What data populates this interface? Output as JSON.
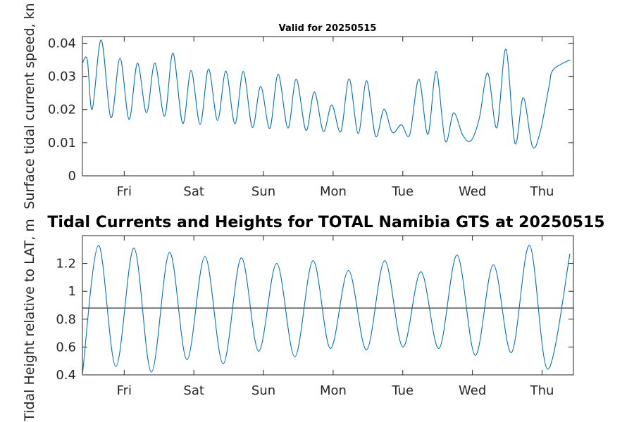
{
  "chart_data": [
    {
      "type": "line",
      "title": "Valid for 20250515",
      "ylabel": "Surface tidal current speed, kn",
      "ylim": [
        0,
        0.042
      ],
      "yticks": [
        "0",
        "0.01",
        "0.02",
        "0.03",
        "0.04"
      ],
      "yticks_values": [
        0,
        0.01,
        0.02,
        0.03,
        0.04
      ],
      "xlim_days": [
        0,
        7.05
      ],
      "xticks": [
        "Fri",
        "Sat",
        "Sun",
        "Mon",
        "Tue",
        "Wed",
        "Thu"
      ],
      "xticks_days": [
        0.6,
        1.6,
        2.6,
        3.6,
        4.6,
        5.6,
        6.6
      ],
      "series": [
        {
          "color": "#0072BD",
          "points": [
            [
              0.0,
              0.034
            ],
            [
              0.07,
              0.035
            ],
            [
              0.14,
              0.02
            ],
            [
              0.27,
              0.041
            ],
            [
              0.41,
              0.0175
            ],
            [
              0.54,
              0.0355
            ],
            [
              0.67,
              0.017
            ],
            [
              0.79,
              0.034
            ],
            [
              0.92,
              0.019
            ],
            [
              1.04,
              0.034
            ],
            [
              1.18,
              0.018
            ],
            [
              1.3,
              0.037
            ],
            [
              1.44,
              0.0158
            ],
            [
              1.56,
              0.0318
            ],
            [
              1.69,
              0.0155
            ],
            [
              1.81,
              0.0322
            ],
            [
              1.94,
              0.0167
            ],
            [
              2.06,
              0.0316
            ],
            [
              2.19,
              0.0157
            ],
            [
              2.31,
              0.0315
            ],
            [
              2.44,
              0.0146
            ],
            [
              2.56,
              0.027
            ],
            [
              2.69,
              0.0143
            ],
            [
              2.81,
              0.0307
            ],
            [
              2.95,
              0.0144
            ],
            [
              3.07,
              0.0292
            ],
            [
              3.21,
              0.0137
            ],
            [
              3.33,
              0.0253
            ],
            [
              3.46,
              0.0134
            ],
            [
              3.58,
              0.0214
            ],
            [
              3.71,
              0.0133
            ],
            [
              3.83,
              0.0293
            ],
            [
              3.96,
              0.0127
            ],
            [
              4.08,
              0.0287
            ],
            [
              4.21,
              0.0119
            ],
            [
              4.33,
              0.0201
            ],
            [
              4.45,
              0.0131
            ],
            [
              4.58,
              0.0154
            ],
            [
              4.7,
              0.0124
            ],
            [
              4.83,
              0.0292
            ],
            [
              4.96,
              0.0125
            ],
            [
              5.08,
              0.0315
            ],
            [
              5.21,
              0.0105
            ],
            [
              5.33,
              0.019
            ],
            [
              5.46,
              0.0123
            ],
            [
              5.58,
              0.0106
            ],
            [
              5.7,
              0.0175
            ],
            [
              5.82,
              0.031
            ],
            [
              5.95,
              0.0145
            ],
            [
              6.08,
              0.0382
            ],
            [
              6.21,
              0.0098
            ],
            [
              6.33,
              0.0236
            ],
            [
              6.46,
              0.0089
            ],
            [
              6.57,
              0.013
            ],
            [
              6.7,
              0.027
            ],
            [
              6.76,
              0.032
            ],
            [
              7.0,
              0.035
            ]
          ]
        }
      ]
    },
    {
      "type": "line",
      "title": "Tidal Currents and Heights for TOTAL Namibia GTS at 20250515",
      "ylabel": "Tidal Height relative to LAT, m",
      "ylim": [
        0.4,
        1.4
      ],
      "yticks": [
        "0.4",
        "0.6",
        "0.8",
        "1",
        "1.2"
      ],
      "yticks_values": [
        0.4,
        0.6,
        0.8,
        1.0,
        1.2
      ],
      "xlim_days": [
        0,
        7.05
      ],
      "xticks": [
        "Fri",
        "Sat",
        "Sun",
        "Mon",
        "Tue",
        "Wed",
        "Thu"
      ],
      "xticks_days": [
        0.6,
        1.6,
        2.6,
        3.6,
        4.6,
        5.6,
        6.6
      ],
      "reference_line": 0.88,
      "series": [
        {
          "color": "#0072BD",
          "points": [
            [
              0.0,
              0.4
            ],
            [
              0.23,
              1.33
            ],
            [
              0.48,
              0.46
            ],
            [
              0.74,
              1.31
            ],
            [
              0.99,
              0.42
            ],
            [
              1.25,
              1.28
            ],
            [
              1.5,
              0.51
            ],
            [
              1.76,
              1.25
            ],
            [
              2.02,
              0.48
            ],
            [
              2.28,
              1.24
            ],
            [
              2.53,
              0.57
            ],
            [
              2.79,
              1.2
            ],
            [
              3.05,
              0.53
            ],
            [
              3.31,
              1.22
            ],
            [
              3.56,
              0.59
            ],
            [
              3.82,
              1.15
            ],
            [
              4.08,
              0.58
            ],
            [
              4.34,
              1.22
            ],
            [
              4.6,
              0.6
            ],
            [
              4.86,
              1.14
            ],
            [
              5.12,
              0.59
            ],
            [
              5.38,
              1.26
            ],
            [
              5.64,
              0.54
            ],
            [
              5.9,
              1.19
            ],
            [
              6.16,
              0.56
            ],
            [
              6.42,
              1.33
            ],
            [
              6.68,
              0.44
            ],
            [
              7.0,
              1.27
            ]
          ]
        }
      ]
    }
  ]
}
